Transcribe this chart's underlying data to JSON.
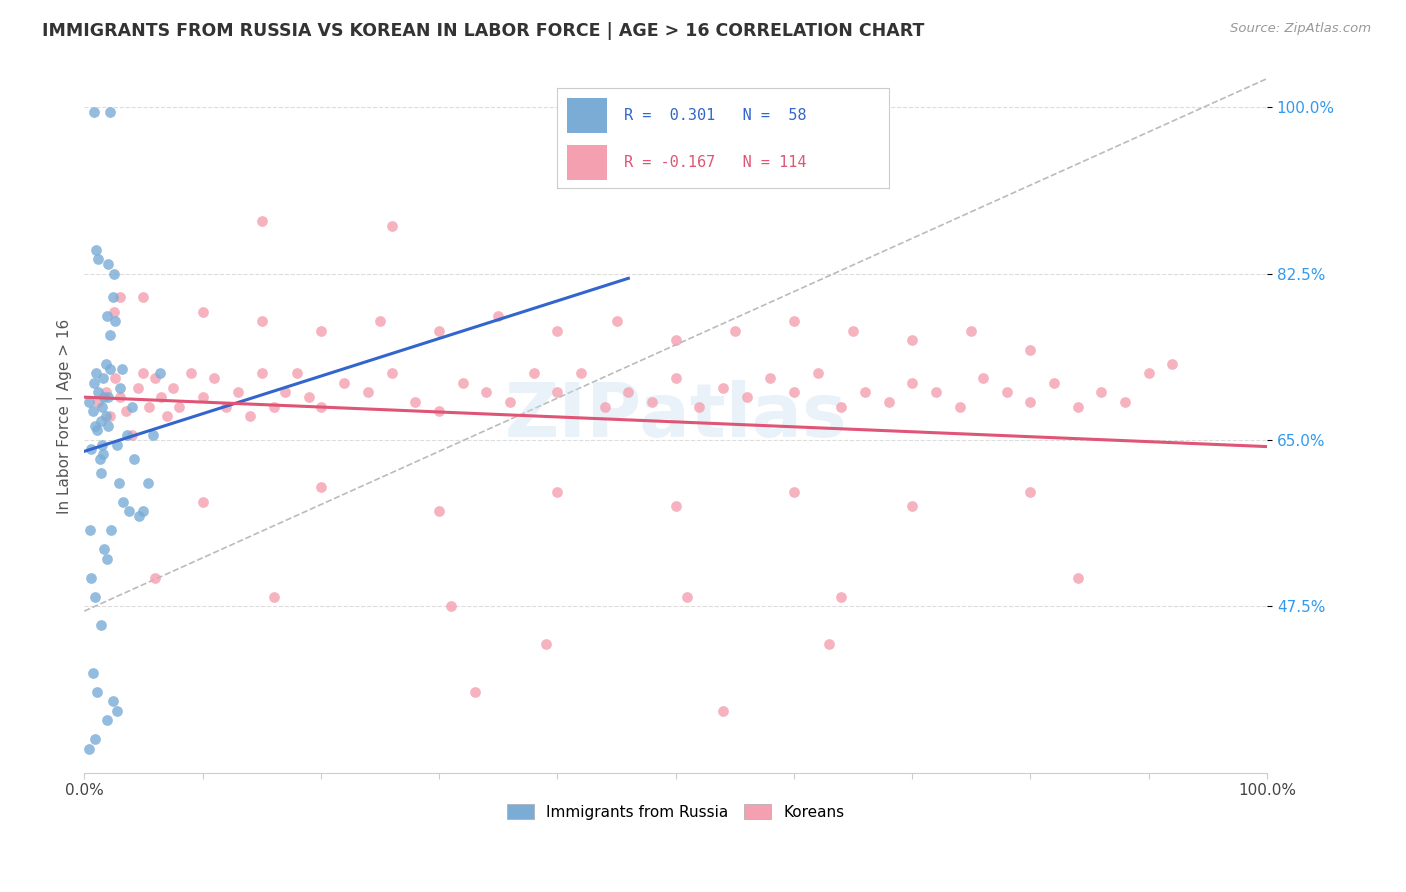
{
  "title": "IMMIGRANTS FROM RUSSIA VS KOREAN IN LABOR FORCE | AGE > 16 CORRELATION CHART",
  "source": "Source: ZipAtlas.com",
  "ylabel": "In Labor Force | Age > 16",
  "ytick_labels": [
    "47.5%",
    "65.0%",
    "82.5%",
    "100.0%"
  ],
  "ytick_values": [
    0.475,
    0.65,
    0.825,
    1.0
  ],
  "xlim": [
    0.0,
    1.0
  ],
  "ylim": [
    0.3,
    1.05
  ],
  "russia_color": "#7aacd6",
  "korean_color": "#f4a0b0",
  "russia_line_color": "#3366cc",
  "korean_line_color": "#e05575",
  "ref_line_color": "#bbbbbb",
  "watermark": "ZIPatlas",
  "russia_scatter": [
    [
      0.004,
      0.69
    ],
    [
      0.006,
      0.64
    ],
    [
      0.007,
      0.68
    ],
    [
      0.008,
      0.71
    ],
    [
      0.009,
      0.665
    ],
    [
      0.01,
      0.72
    ],
    [
      0.011,
      0.66
    ],
    [
      0.012,
      0.7
    ],
    [
      0.013,
      0.63
    ],
    [
      0.014,
      0.67
    ],
    [
      0.015,
      0.685
    ],
    [
      0.016,
      0.715
    ],
    [
      0.017,
      0.695
    ],
    [
      0.018,
      0.73
    ],
    [
      0.019,
      0.78
    ],
    [
      0.02,
      0.665
    ],
    [
      0.022,
      0.76
    ],
    [
      0.024,
      0.8
    ],
    [
      0.026,
      0.775
    ],
    [
      0.028,
      0.645
    ],
    [
      0.03,
      0.705
    ],
    [
      0.032,
      0.725
    ],
    [
      0.036,
      0.655
    ],
    [
      0.04,
      0.685
    ],
    [
      0.042,
      0.63
    ],
    [
      0.046,
      0.57
    ],
    [
      0.05,
      0.575
    ],
    [
      0.054,
      0.605
    ],
    [
      0.058,
      0.655
    ],
    [
      0.064,
      0.72
    ],
    [
      0.008,
      0.995
    ],
    [
      0.022,
      0.995
    ],
    [
      0.01,
      0.85
    ],
    [
      0.012,
      0.84
    ],
    [
      0.02,
      0.835
    ],
    [
      0.025,
      0.825
    ],
    [
      0.005,
      0.555
    ],
    [
      0.006,
      0.505
    ],
    [
      0.009,
      0.485
    ],
    [
      0.014,
      0.455
    ],
    [
      0.017,
      0.535
    ],
    [
      0.019,
      0.525
    ],
    [
      0.023,
      0.555
    ],
    [
      0.029,
      0.605
    ],
    [
      0.033,
      0.585
    ],
    [
      0.038,
      0.575
    ],
    [
      0.007,
      0.405
    ],
    [
      0.011,
      0.385
    ],
    [
      0.019,
      0.355
    ],
    [
      0.024,
      0.375
    ],
    [
      0.004,
      0.325
    ],
    [
      0.009,
      0.335
    ],
    [
      0.028,
      0.365
    ],
    [
      0.014,
      0.615
    ],
    [
      0.015,
      0.645
    ],
    [
      0.016,
      0.635
    ],
    [
      0.018,
      0.675
    ],
    [
      0.02,
      0.695
    ],
    [
      0.022,
      0.725
    ]
  ],
  "korean_scatter": [
    [
      0.012,
      0.69
    ],
    [
      0.018,
      0.7
    ],
    [
      0.022,
      0.675
    ],
    [
      0.026,
      0.715
    ],
    [
      0.03,
      0.695
    ],
    [
      0.035,
      0.68
    ],
    [
      0.04,
      0.655
    ],
    [
      0.045,
      0.705
    ],
    [
      0.05,
      0.72
    ],
    [
      0.055,
      0.685
    ],
    [
      0.06,
      0.715
    ],
    [
      0.065,
      0.695
    ],
    [
      0.07,
      0.675
    ],
    [
      0.075,
      0.705
    ],
    [
      0.08,
      0.685
    ],
    [
      0.09,
      0.72
    ],
    [
      0.1,
      0.695
    ],
    [
      0.11,
      0.715
    ],
    [
      0.12,
      0.685
    ],
    [
      0.13,
      0.7
    ],
    [
      0.14,
      0.675
    ],
    [
      0.15,
      0.72
    ],
    [
      0.16,
      0.685
    ],
    [
      0.17,
      0.7
    ],
    [
      0.18,
      0.72
    ],
    [
      0.19,
      0.695
    ],
    [
      0.2,
      0.685
    ],
    [
      0.22,
      0.71
    ],
    [
      0.24,
      0.7
    ],
    [
      0.26,
      0.72
    ],
    [
      0.28,
      0.69
    ],
    [
      0.3,
      0.68
    ],
    [
      0.32,
      0.71
    ],
    [
      0.34,
      0.7
    ],
    [
      0.36,
      0.69
    ],
    [
      0.38,
      0.72
    ],
    [
      0.4,
      0.7
    ],
    [
      0.42,
      0.72
    ],
    [
      0.44,
      0.685
    ],
    [
      0.46,
      0.7
    ],
    [
      0.48,
      0.69
    ],
    [
      0.5,
      0.715
    ],
    [
      0.52,
      0.685
    ],
    [
      0.54,
      0.705
    ],
    [
      0.56,
      0.695
    ],
    [
      0.58,
      0.715
    ],
    [
      0.6,
      0.7
    ],
    [
      0.62,
      0.72
    ],
    [
      0.64,
      0.685
    ],
    [
      0.66,
      0.7
    ],
    [
      0.68,
      0.69
    ],
    [
      0.7,
      0.71
    ],
    [
      0.72,
      0.7
    ],
    [
      0.74,
      0.685
    ],
    [
      0.76,
      0.715
    ],
    [
      0.78,
      0.7
    ],
    [
      0.8,
      0.69
    ],
    [
      0.82,
      0.71
    ],
    [
      0.84,
      0.685
    ],
    [
      0.86,
      0.7
    ],
    [
      0.88,
      0.69
    ],
    [
      0.9,
      0.72
    ],
    [
      0.05,
      0.8
    ],
    [
      0.1,
      0.785
    ],
    [
      0.15,
      0.775
    ],
    [
      0.2,
      0.765
    ],
    [
      0.25,
      0.775
    ],
    [
      0.3,
      0.765
    ],
    [
      0.35,
      0.78
    ],
    [
      0.4,
      0.765
    ],
    [
      0.45,
      0.775
    ],
    [
      0.5,
      0.755
    ],
    [
      0.55,
      0.765
    ],
    [
      0.6,
      0.775
    ],
    [
      0.65,
      0.765
    ],
    [
      0.7,
      0.755
    ],
    [
      0.75,
      0.765
    ],
    [
      0.8,
      0.745
    ],
    [
      0.025,
      0.785
    ],
    [
      0.03,
      0.8
    ],
    [
      0.15,
      0.88
    ],
    [
      0.26,
      0.875
    ],
    [
      0.1,
      0.585
    ],
    [
      0.2,
      0.6
    ],
    [
      0.3,
      0.575
    ],
    [
      0.4,
      0.595
    ],
    [
      0.5,
      0.58
    ],
    [
      0.6,
      0.595
    ],
    [
      0.7,
      0.58
    ],
    [
      0.8,
      0.595
    ],
    [
      0.06,
      0.505
    ],
    [
      0.16,
      0.485
    ],
    [
      0.31,
      0.475
    ],
    [
      0.51,
      0.485
    ],
    [
      0.64,
      0.485
    ],
    [
      0.84,
      0.505
    ],
    [
      0.92,
      0.73
    ],
    [
      0.39,
      0.435
    ],
    [
      0.63,
      0.435
    ],
    [
      0.33,
      0.385
    ],
    [
      0.54,
      0.365
    ]
  ]
}
